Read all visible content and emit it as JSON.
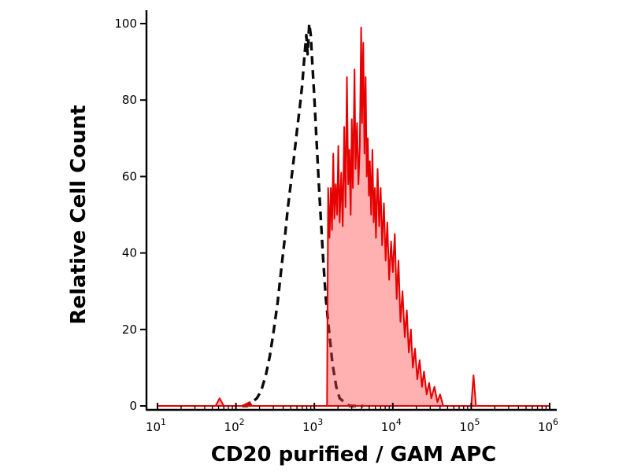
{
  "figure": {
    "background": "#ffffff"
  },
  "chart_data": {
    "type": "area",
    "subtype": "flow-cytometry-overlay-histogram",
    "title": "",
    "xlabel": "CD20 purified / GAM APC",
    "ylabel": "Relative Cell Count",
    "x_scale": "log",
    "x_range": [
      10,
      1000000
    ],
    "y_range": [
      0,
      100
    ],
    "grid": false,
    "legend": "none",
    "axis_color": "#000000",
    "x_ticks": [
      {
        "value": 10,
        "base": "10",
        "exp": "1"
      },
      {
        "value": 100,
        "base": "10",
        "exp": "2"
      },
      {
        "value": 1000,
        "base": "10",
        "exp": "3"
      },
      {
        "value": 10000,
        "base": "10",
        "exp": "4"
      },
      {
        "value": 100000,
        "base": "10",
        "exp": "5"
      },
      {
        "value": 1000000,
        "base": "10",
        "exp": "6"
      }
    ],
    "y_ticks": [
      0,
      20,
      40,
      60,
      80,
      100
    ],
    "series": [
      {
        "name": "negative control (dashed)",
        "style": "dashed",
        "stroke": "#0a0a0a",
        "stroke_width": 3.4,
        "dash": "11 7",
        "fill": "none",
        "points": [
          [
            120,
            0
          ],
          [
            140,
            0
          ],
          [
            160,
            1
          ],
          [
            185,
            2
          ],
          [
            210,
            4
          ],
          [
            240,
            8
          ],
          [
            270,
            13
          ],
          [
            300,
            19
          ],
          [
            340,
            27
          ],
          [
            380,
            36
          ],
          [
            420,
            44
          ],
          [
            460,
            52
          ],
          [
            500,
            58
          ],
          [
            550,
            65
          ],
          [
            600,
            72
          ],
          [
            650,
            78
          ],
          [
            700,
            84
          ],
          [
            750,
            92
          ],
          [
            790,
            97
          ],
          [
            820,
            92
          ],
          [
            860,
            100
          ],
          [
            900,
            97
          ],
          [
            940,
            90
          ],
          [
            990,
            82
          ],
          [
            1050,
            72
          ],
          [
            1120,
            61
          ],
          [
            1200,
            50
          ],
          [
            1300,
            38
          ],
          [
            1400,
            28
          ],
          [
            1550,
            19
          ],
          [
            1700,
            11
          ],
          [
            1900,
            5
          ],
          [
            2100,
            2
          ],
          [
            2400,
            1
          ],
          [
            2800,
            0
          ],
          [
            3500,
            0
          ],
          [
            4200,
            0
          ]
        ]
      },
      {
        "name": "CD20 purified / GAM APC (filled)",
        "style": "solid",
        "stroke": "#e60000",
        "stroke_width": 2,
        "dash": "",
        "fill": "rgba(255,70,70,0.42)",
        "points": [
          [
            10,
            0
          ],
          [
            40,
            0
          ],
          [
            55,
            0
          ],
          [
            62,
            2
          ],
          [
            70,
            0
          ],
          [
            120,
            0
          ],
          [
            150,
            1
          ],
          [
            160,
            0
          ],
          [
            400,
            0
          ],
          [
            900,
            0
          ],
          [
            1300,
            0
          ],
          [
            1450,
            0
          ],
          [
            1500,
            57
          ],
          [
            1560,
            44
          ],
          [
            1620,
            57
          ],
          [
            1680,
            46
          ],
          [
            1740,
            66
          ],
          [
            1800,
            49
          ],
          [
            1870,
            58
          ],
          [
            1950,
            50
          ],
          [
            2020,
            68
          ],
          [
            2100,
            48
          ],
          [
            2200,
            61
          ],
          [
            2300,
            47
          ],
          [
            2400,
            73
          ],
          [
            2500,
            52
          ],
          [
            2600,
            86
          ],
          [
            2700,
            58
          ],
          [
            2800,
            67
          ],
          [
            2900,
            50
          ],
          [
            3000,
            75
          ],
          [
            3100,
            57
          ],
          [
            3250,
            88
          ],
          [
            3350,
            62
          ],
          [
            3500,
            74
          ],
          [
            3650,
            58
          ],
          [
            3800,
            68
          ],
          [
            3950,
            99
          ],
          [
            4050,
            74
          ],
          [
            4200,
            95
          ],
          [
            4350,
            66
          ],
          [
            4500,
            86
          ],
          [
            4650,
            60
          ],
          [
            4800,
            70
          ],
          [
            4950,
            55
          ],
          [
            5100,
            64
          ],
          [
            5300,
            50
          ],
          [
            5500,
            67
          ],
          [
            5700,
            48
          ],
          [
            5900,
            57
          ],
          [
            6100,
            44
          ],
          [
            6400,
            62
          ],
          [
            6700,
            47
          ],
          [
            7000,
            57
          ],
          [
            7300,
            42
          ],
          [
            7700,
            53
          ],
          [
            8100,
            38
          ],
          [
            8500,
            48
          ],
          [
            9000,
            33
          ],
          [
            9500,
            43
          ],
          [
            10000,
            35
          ],
          [
            10600,
            45
          ],
          [
            11200,
            28
          ],
          [
            11800,
            38
          ],
          [
            12500,
            22
          ],
          [
            13300,
            30
          ],
          [
            14200,
            18
          ],
          [
            15100,
            25
          ],
          [
            16000,
            14
          ],
          [
            17000,
            20
          ],
          [
            18000,
            10
          ],
          [
            19200,
            15
          ],
          [
            20500,
            7
          ],
          [
            22000,
            12
          ],
          [
            23500,
            5
          ],
          [
            25000,
            9
          ],
          [
            27000,
            3
          ],
          [
            29000,
            6
          ],
          [
            31000,
            2
          ],
          [
            34000,
            5
          ],
          [
            37000,
            1
          ],
          [
            40000,
            3
          ],
          [
            44000,
            0
          ],
          [
            60000,
            0
          ],
          [
            100000,
            0
          ],
          [
            107000,
            8
          ],
          [
            115000,
            0
          ],
          [
            300000,
            0
          ],
          [
            1000000,
            0
          ]
        ]
      }
    ]
  }
}
